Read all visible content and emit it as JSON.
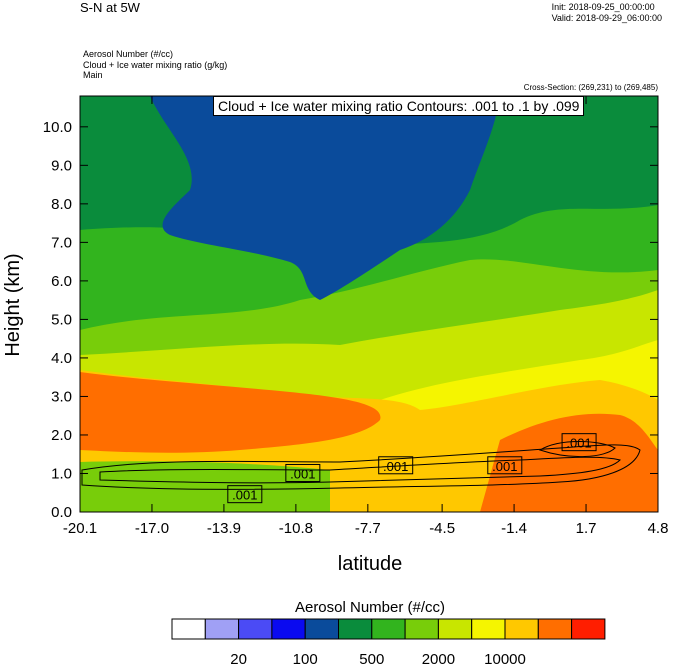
{
  "header": {
    "title": "S-N at 5W",
    "init": "Init: 2018-09-25_00:00:00",
    "valid": "Valid: 2018-09-29_06:00:00",
    "field1": "Aerosol Number   (#/cc)",
    "field2": "Cloud + Ice water mixing ratio   (g/kg)",
    "field3": "Main",
    "cross_section": "Cross-Section: (269,231) to (269,485)",
    "contour_label": "Cloud + Ice water mixing ratio Contours: .001 to .1 by .099"
  },
  "chart_data": {
    "type": "heatmap",
    "xlabel": "latitude",
    "ylabel": "Height (km)",
    "x_ticks": [
      "-20.1",
      "-17.0",
      "-13.9",
      "-10.8",
      "-7.7",
      "-4.5",
      "-1.4",
      "1.7",
      "4.8"
    ],
    "y_ticks": [
      "0.0",
      "1.0",
      "2.0",
      "3.0",
      "4.0",
      "5.0",
      "6.0",
      "7.0",
      "8.0",
      "9.0",
      "10.0"
    ],
    "xlim": [
      -20.1,
      4.8
    ],
    "ylim": [
      0.0,
      10.8
    ],
    "colorbar": {
      "title": "Aerosol Number  (#/cc)",
      "labels": [
        "20",
        "100",
        "500",
        "2000",
        "10000"
      ],
      "colors": [
        "#ffffff",
        "#a0a0f5",
        "#4b4bf5",
        "#0a0af0",
        "#0a4b9b",
        "#0a8c3c",
        "#32b41e",
        "#78cd0a",
        "#c8e600",
        "#f5f500",
        "#ffc800",
        "#ff6e00",
        "#ff1e00"
      ]
    },
    "contour_labels": [
      {
        "text": ".001",
        "x": -13.0,
        "y": 0.45
      },
      {
        "text": ".001",
        "x": -10.5,
        "y": 1.0
      },
      {
        "text": ".001",
        "x": -6.5,
        "y": 1.2
      },
      {
        "text": ".001",
        "x": -1.8,
        "y": 1.2
      },
      {
        "text": ".001",
        "x": 1.4,
        "y": 1.8
      }
    ]
  }
}
